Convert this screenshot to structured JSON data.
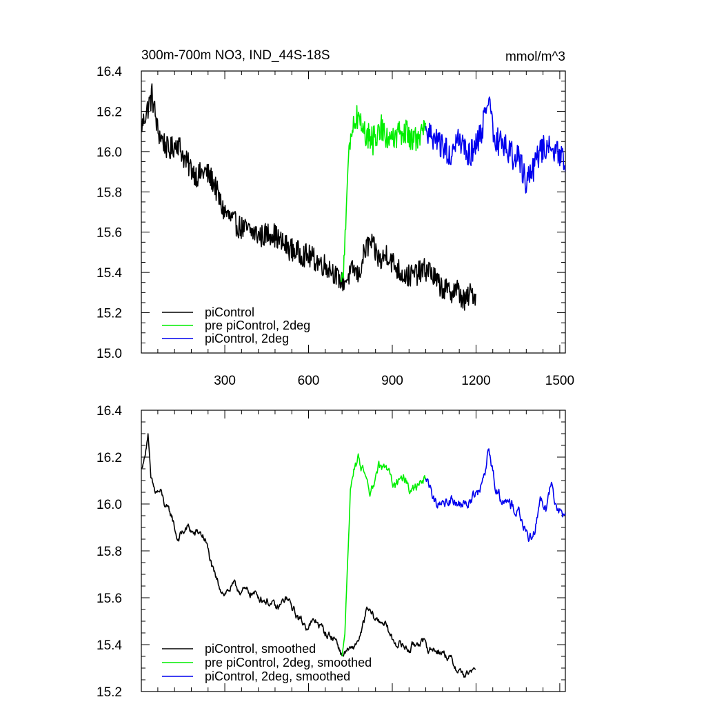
{
  "chart_data": [
    {
      "type": "line",
      "title": "300m-700m NO3, IND_44S-18S",
      "units": "mmol/m^3",
      "xlabel": "",
      "ylabel": "",
      "xlim": [
        1,
        1520
      ],
      "ylim": [
        15.0,
        16.4
      ],
      "xticks": [
        300,
        600,
        900,
        1200,
        1500
      ],
      "yticks": [
        15.0,
        15.2,
        15.4,
        15.6,
        15.8,
        16.0,
        16.2,
        16.4
      ],
      "yticklabels": [
        "15.0",
        "15.2",
        "15.4",
        "15.6",
        "15.8",
        "16.0",
        "16.2",
        "16.4"
      ],
      "xticklabels_shown": true,
      "grid": false,
      "legend_position": "bottom-left",
      "series": [
        {
          "name": "piControl",
          "color": "#000000",
          "x": [
            1,
            20,
            40,
            60,
            80,
            100,
            130,
            160,
            200,
            230,
            260,
            290,
            330,
            360,
            400,
            430,
            470,
            500,
            530,
            560,
            600,
            640,
            680,
            700,
            720,
            740,
            760,
            780,
            800,
            820,
            840,
            860,
            880,
            900,
            930,
            960,
            1000,
            1030,
            1060,
            1100,
            1130,
            1160,
            1180,
            1200
          ],
          "y": [
            16.12,
            16.2,
            16.28,
            16.1,
            16.05,
            16.0,
            16.05,
            15.95,
            15.88,
            15.9,
            15.85,
            15.72,
            15.65,
            15.62,
            15.6,
            15.58,
            15.6,
            15.55,
            15.52,
            15.5,
            15.48,
            15.45,
            15.42,
            15.38,
            15.35,
            15.37,
            15.42,
            15.38,
            15.5,
            15.55,
            15.5,
            15.45,
            15.5,
            15.45,
            15.4,
            15.38,
            15.4,
            15.42,
            15.35,
            15.3,
            15.32,
            15.25,
            15.3,
            15.28
          ],
          "amp": [
            0.05,
            0.06,
            0.07,
            0.06,
            0.06,
            0.06,
            0.06,
            0.06,
            0.06,
            0.06,
            0.06,
            0.06,
            0.06,
            0.06,
            0.06,
            0.06,
            0.06,
            0.06,
            0.06,
            0.06,
            0.06,
            0.06,
            0.06,
            0.05,
            0.05,
            0.05,
            0.05,
            0.05,
            0.06,
            0.06,
            0.06,
            0.06,
            0.06,
            0.06,
            0.06,
            0.06,
            0.06,
            0.06,
            0.06,
            0.06,
            0.06,
            0.06,
            0.05,
            0.05
          ]
        },
        {
          "name": "pre piControl, 2deg",
          "color": "#00ee00",
          "x": [
            715,
            725,
            735,
            745,
            760,
            780,
            800,
            830,
            860,
            900,
            940,
            980,
            1020
          ],
          "y": [
            15.35,
            15.4,
            15.7,
            16.0,
            16.15,
            16.18,
            16.1,
            16.05,
            16.12,
            16.05,
            16.1,
            16.05,
            16.12
          ],
          "amp": [
            0.02,
            0.03,
            0.05,
            0.06,
            0.07,
            0.07,
            0.07,
            0.07,
            0.07,
            0.07,
            0.07,
            0.07,
            0.06
          ]
        },
        {
          "name": "piControl, 2deg",
          "color": "#0000ee",
          "x": [
            1020,
            1050,
            1080,
            1110,
            1140,
            1170,
            1200,
            1230,
            1245,
            1270,
            1300,
            1330,
            1360,
            1380,
            1400,
            1430,
            1460,
            1490,
            1520
          ],
          "y": [
            16.1,
            16.05,
            16.02,
            16.0,
            16.05,
            15.98,
            16.02,
            16.15,
            16.25,
            16.05,
            16.05,
            15.98,
            15.95,
            15.85,
            15.9,
            16.0,
            16.05,
            16.0,
            15.95
          ],
          "amp": [
            0.06,
            0.07,
            0.07,
            0.07,
            0.07,
            0.07,
            0.07,
            0.07,
            0.06,
            0.07,
            0.07,
            0.07,
            0.07,
            0.07,
            0.07,
            0.07,
            0.07,
            0.07,
            0.06
          ]
        }
      ]
    },
    {
      "type": "line",
      "title": "",
      "units": "",
      "xlabel": "",
      "ylabel": "",
      "xlim": [
        1,
        1520
      ],
      "ylim": [
        15.2,
        16.4
      ],
      "xticks": [
        300,
        600,
        900,
        1200,
        1500
      ],
      "yticks": [
        15.2,
        15.4,
        15.6,
        15.8,
        16.0,
        16.2,
        16.4
      ],
      "yticklabels": [
        "15.2",
        "15.4",
        "15.6",
        "15.8",
        "16.0",
        "16.2",
        "16.4"
      ],
      "xticklabels_shown": false,
      "grid": false,
      "legend_position": "bottom-left",
      "series": [
        {
          "name": "piControl, smoothed",
          "color": "#000000",
          "x": [
            1,
            10,
            25,
            35,
            50,
            70,
            90,
            110,
            130,
            150,
            170,
            190,
            210,
            230,
            260,
            280,
            300,
            330,
            360,
            400,
            430,
            460,
            490,
            520,
            560,
            590,
            630,
            660,
            700,
            720,
            740,
            760,
            790,
            810,
            830,
            850,
            870,
            900,
            930,
            960,
            1000,
            1030,
            1060,
            1100,
            1130,
            1160,
            1180,
            1200
          ],
          "y": [
            16.15,
            16.18,
            16.3,
            16.1,
            16.05,
            16.05,
            15.98,
            15.95,
            15.85,
            15.88,
            15.9,
            15.87,
            15.88,
            15.85,
            15.7,
            15.65,
            15.62,
            15.65,
            15.63,
            15.62,
            15.6,
            15.58,
            15.55,
            15.6,
            15.52,
            15.48,
            15.5,
            15.45,
            15.42,
            15.35,
            15.38,
            15.38,
            15.45,
            15.55,
            15.52,
            15.5,
            15.5,
            15.42,
            15.4,
            15.38,
            15.42,
            15.38,
            15.38,
            15.35,
            15.3,
            15.27,
            15.28,
            15.3
          ],
          "amp": [
            0.01,
            0.02,
            0.02,
            0.03,
            0.03,
            0.03,
            0.03,
            0.03,
            0.03,
            0.03,
            0.03,
            0.03,
            0.03,
            0.03,
            0.03,
            0.03,
            0.03,
            0.03,
            0.03,
            0.03,
            0.03,
            0.03,
            0.03,
            0.03,
            0.03,
            0.03,
            0.03,
            0.03,
            0.03,
            0.02,
            0.02,
            0.02,
            0.03,
            0.03,
            0.03,
            0.03,
            0.03,
            0.03,
            0.03,
            0.03,
            0.03,
            0.03,
            0.03,
            0.03,
            0.03,
            0.03,
            0.02,
            0.01
          ]
        },
        {
          "name": "pre piControl, 2deg, smoothed",
          "color": "#00ee00",
          "x": [
            720,
            730,
            740,
            750,
            765,
            780,
            800,
            820,
            850,
            880,
            910,
            940,
            970,
            1000,
            1020
          ],
          "y": [
            15.35,
            15.45,
            15.75,
            16.05,
            16.15,
            16.2,
            16.12,
            16.02,
            16.15,
            16.15,
            16.08,
            16.1,
            16.05,
            16.08,
            16.1
          ],
          "amp": [
            0.0,
            0.01,
            0.02,
            0.03,
            0.04,
            0.04,
            0.04,
            0.04,
            0.04,
            0.04,
            0.04,
            0.04,
            0.04,
            0.04,
            0.03
          ]
        },
        {
          "name": "piControl, 2deg, smoothed",
          "color": "#0000ee",
          "x": [
            1020,
            1040,
            1060,
            1090,
            1120,
            1150,
            1180,
            1210,
            1230,
            1245,
            1265,
            1290,
            1320,
            1350,
            1370,
            1390,
            1410,
            1430,
            1450,
            1470,
            1490,
            1510,
            1520
          ],
          "y": [
            16.1,
            16.05,
            16.0,
            16.0,
            16.02,
            15.98,
            16.02,
            16.05,
            16.1,
            16.25,
            16.1,
            16.02,
            16.0,
            15.98,
            15.9,
            15.85,
            15.9,
            16.02,
            15.98,
            16.1,
            15.98,
            15.95,
            15.97
          ],
          "amp": [
            0.03,
            0.04,
            0.04,
            0.04,
            0.04,
            0.04,
            0.04,
            0.04,
            0.04,
            0.03,
            0.04,
            0.04,
            0.04,
            0.04,
            0.04,
            0.04,
            0.04,
            0.04,
            0.04,
            0.04,
            0.04,
            0.03,
            0.02
          ]
        }
      ]
    }
  ]
}
